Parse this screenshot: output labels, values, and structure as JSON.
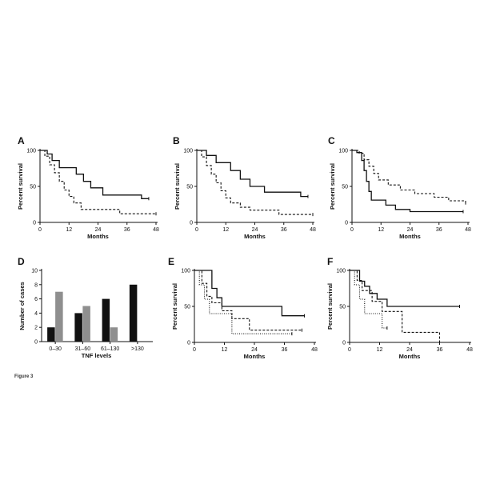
{
  "caption": "Figure 3",
  "chart_data": [
    {
      "panel": "A",
      "type": "line",
      "step": true,
      "xlabel": "Months",
      "ylabel": "Percent survival",
      "xlim": [
        0,
        48
      ],
      "ylim": [
        0,
        100
      ],
      "xticks": [
        0,
        12,
        24,
        36,
        48
      ],
      "yticks": [
        0,
        50,
        100
      ],
      "series": [
        {
          "style": "solid",
          "x": [
            0,
            3,
            5,
            8,
            15,
            18,
            21,
            26,
            42,
            45
          ],
          "y": [
            100,
            95,
            86,
            76,
            67,
            57,
            48,
            38,
            33,
            33
          ]
        },
        {
          "style": "dashed",
          "x": [
            0,
            2,
            4,
            6,
            8,
            10,
            12,
            14,
            17,
            33,
            41,
            48
          ],
          "y": [
            100,
            92,
            80,
            69,
            57,
            45,
            36,
            27,
            18,
            12,
            12,
            12
          ]
        }
      ]
    },
    {
      "panel": "B",
      "type": "line",
      "step": true,
      "xlabel": "Months",
      "ylabel": "Percent survival",
      "xlim": [
        0,
        48
      ],
      "ylim": [
        0,
        100
      ],
      "xticks": [
        0,
        12,
        24,
        36,
        48
      ],
      "yticks": [
        0,
        50,
        100
      ],
      "series": [
        {
          "style": "solid",
          "x": [
            0,
            4,
            8,
            14,
            18,
            22,
            28,
            43,
            46
          ],
          "y": [
            100,
            93,
            83,
            72,
            60,
            50,
            42,
            36,
            36
          ]
        },
        {
          "style": "dashed",
          "x": [
            0,
            2,
            4,
            6,
            8,
            10,
            12,
            14,
            18,
            22,
            34,
            48
          ],
          "y": [
            100,
            91,
            79,
            67,
            55,
            44,
            34,
            27,
            21,
            17,
            11,
            11
          ]
        }
      ]
    },
    {
      "panel": "C",
      "type": "line",
      "step": true,
      "xlabel": "Months",
      "ylabel": "Percent survival",
      "xlim": [
        0,
        48
      ],
      "ylim": [
        0,
        100
      ],
      "xticks": [
        0,
        12,
        24,
        36,
        48
      ],
      "yticks": [
        0,
        50,
        100
      ],
      "series": [
        {
          "style": "solid",
          "x": [
            0,
            2,
            4,
            5,
            6,
            7,
            8,
            14,
            18,
            24,
            46
          ],
          "y": [
            100,
            97,
            86,
            72,
            57,
            43,
            31,
            24,
            18,
            15,
            15
          ]
        },
        {
          "style": "dashed",
          "x": [
            0,
            3,
            5,
            7,
            9,
            11,
            15,
            20,
            26,
            34,
            40,
            47
          ],
          "y": [
            100,
            96,
            87,
            78,
            68,
            59,
            52,
            45,
            40,
            35,
            30,
            27
          ]
        }
      ]
    },
    {
      "panel": "D",
      "type": "bar",
      "xlabel": "TNF levels",
      "ylabel": "Number of cases",
      "categories": [
        "0–30",
        "31–60",
        "61–130",
        ">130"
      ],
      "ylim": [
        0,
        10
      ],
      "yticks": [
        0,
        2,
        4,
        6,
        8,
        10
      ],
      "series": [
        {
          "color": "#111111",
          "values": [
            2,
            4,
            6,
            8
          ]
        },
        {
          "color": "#8f8f8f",
          "values": [
            7,
            5,
            2,
            0
          ]
        }
      ]
    },
    {
      "panel": "E",
      "type": "line",
      "step": true,
      "xlabel": "Months",
      "ylabel": "Percent survival",
      "xlim": [
        0,
        48
      ],
      "ylim": [
        0,
        100
      ],
      "xticks": [
        0,
        12,
        24,
        36,
        48
      ],
      "yticks": [
        0,
        50,
        100
      ],
      "series": [
        {
          "style": "solid",
          "x": [
            0,
            7,
            9,
            11,
            35,
            44
          ],
          "y": [
            100,
            75,
            62,
            50,
            37,
            37
          ]
        },
        {
          "style": "dashed",
          "x": [
            0,
            3,
            5,
            7,
            11,
            15,
            22,
            43
          ],
          "y": [
            100,
            82,
            64,
            55,
            44,
            33,
            17,
            17
          ]
        },
        {
          "style": "dotted",
          "x": [
            0,
            2,
            4,
            6,
            15,
            39
          ],
          "y": [
            100,
            80,
            60,
            40,
            12,
            12
          ]
        }
      ]
    },
    {
      "panel": "F",
      "type": "line",
      "step": true,
      "xlabel": "Months",
      "ylabel": "Percent survival",
      "xlim": [
        0,
        48
      ],
      "ylim": [
        0,
        100
      ],
      "xticks": [
        0,
        12,
        24,
        36,
        48
      ],
      "yticks": [
        0,
        50,
        100
      ],
      "series": [
        {
          "style": "solid",
          "x": [
            0,
            4,
            6,
            8,
            11,
            15,
            44
          ],
          "y": [
            100,
            85,
            78,
            68,
            60,
            50,
            50
          ]
        },
        {
          "style": "dashed",
          "x": [
            0,
            3,
            5,
            9,
            13,
            21,
            34,
            36
          ],
          "y": [
            100,
            86,
            72,
            57,
            43,
            14,
            14,
            0
          ]
        },
        {
          "style": "dotted",
          "x": [
            0,
            2,
            4,
            6,
            13,
            15
          ],
          "y": [
            100,
            80,
            60,
            40,
            20,
            20
          ]
        }
      ]
    }
  ]
}
